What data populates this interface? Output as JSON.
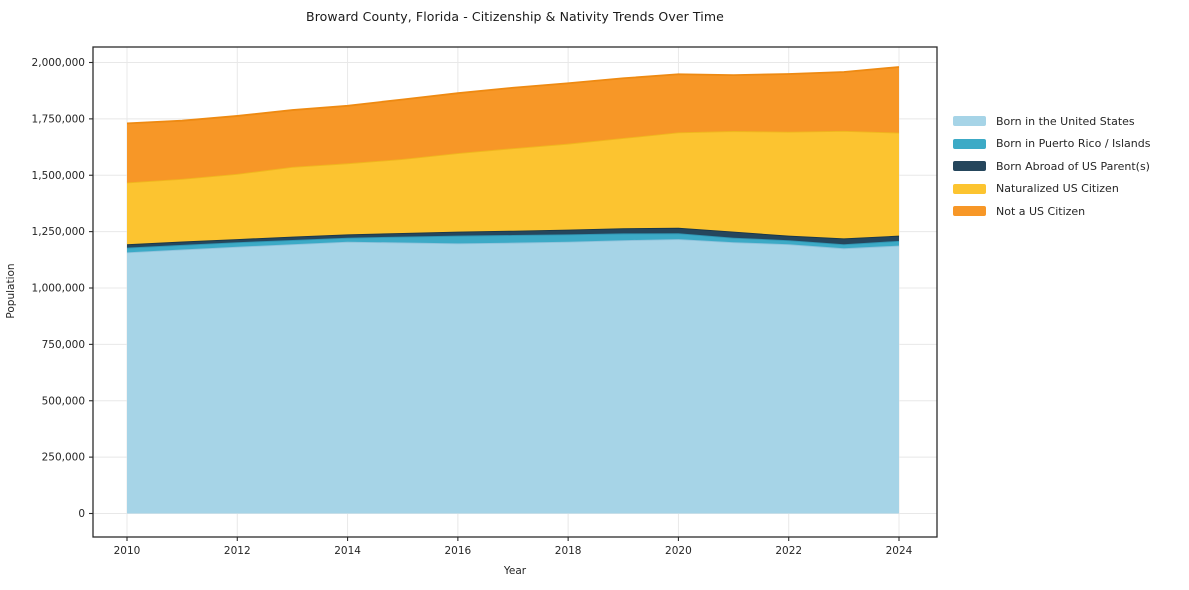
{
  "chart_data": {
    "type": "area",
    "stacked": true,
    "title": "Broward County, Florida - Citizenship & Nativity Trends Over Time",
    "xlabel": "Year",
    "ylabel": "Population",
    "grid": true,
    "legend_position": "right-outside",
    "background_color": "#ffffff",
    "gridline_color": "#e8e8e8",
    "spine_color": "#2b2b2b",
    "text_color": "#262626",
    "xlim": [
      2010,
      2024
    ],
    "ylim": [
      0,
      2000000
    ],
    "x": [
      2010,
      2011,
      2012,
      2013,
      2014,
      2015,
      2016,
      2017,
      2018,
      2019,
      2020,
      2021,
      2022,
      2023,
      2024
    ],
    "xticks": [
      2010,
      2012,
      2014,
      2016,
      2018,
      2020,
      2022,
      2024
    ],
    "xtick_labels": [
      "2010",
      "2012",
      "2014",
      "2016",
      "2018",
      "2020",
      "2022",
      "2024"
    ],
    "yticks": [
      0,
      250000,
      500000,
      750000,
      1000000,
      1250000,
      1500000,
      1750000,
      2000000
    ],
    "ytick_labels": [
      "0",
      "250,000",
      "500,000",
      "750,000",
      "1,000,000",
      "1,250,000",
      "1,500,000",
      "1,750,000",
      "2,000,000"
    ],
    "series": [
      {
        "name": "Born in the United States",
        "color": "#a6d4e7",
        "edge_color": "#8fc3dc",
        "values": [
          1158000,
          1171000,
          1183000,
          1194000,
          1205000,
          1202000,
          1198000,
          1201000,
          1205000,
          1212000,
          1217000,
          1203000,
          1194000,
          1176000,
          1188000
        ]
      },
      {
        "name": "Born in Puerto Rico / Islands",
        "color": "#3caac6",
        "edge_color": "#2f94b2",
        "values": [
          21000,
          20000,
          20000,
          19000,
          18000,
          26000,
          34000,
          34000,
          33000,
          30000,
          26000,
          20000,
          18000,
          18000,
          21000
        ]
      },
      {
        "name": "Born Abroad of US Parent(s)",
        "color": "#25465c",
        "edge_color": "#1a3749",
        "values": [
          15000,
          15000,
          14000,
          15000,
          15000,
          16000,
          18000,
          19000,
          21000,
          23000,
          24000,
          27000,
          20000,
          26000,
          23000
        ]
      },
      {
        "name": "Naturalized US Citizen",
        "color": "#fcc430",
        "edge_color": "#f0b61e",
        "values": [
          274000,
          278000,
          289000,
          309000,
          315000,
          328000,
          348000,
          366000,
          381000,
          400000,
          423000,
          446000,
          461000,
          477000,
          457000
        ]
      },
      {
        "name": "Not a US Citizen",
        "color": "#f79727",
        "edge_color": "#ee8a12",
        "values": [
          262000,
          258000,
          257000,
          252000,
          255000,
          264000,
          266000,
          268000,
          268000,
          265000,
          258000,
          248000,
          256000,
          261000,
          291000
        ]
      }
    ]
  }
}
